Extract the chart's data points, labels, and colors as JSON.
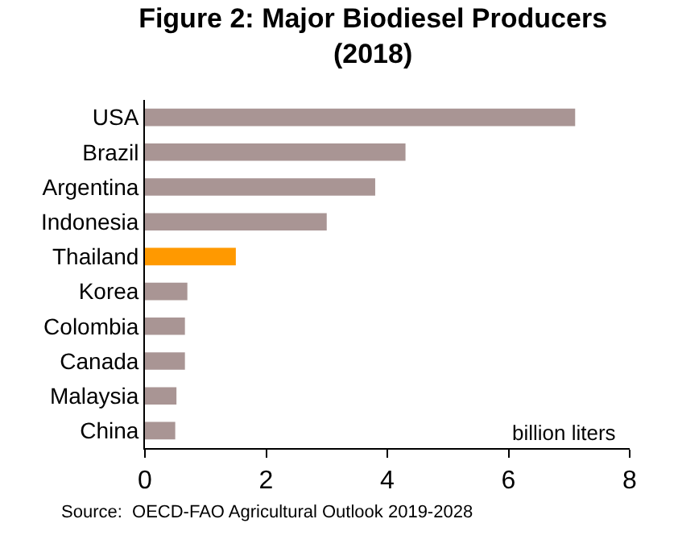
{
  "chart_data": {
    "type": "bar",
    "orientation": "horizontal",
    "title": "Figure 2: Major Biodiesel Producers\n(2018)",
    "categories": [
      "USA",
      "Brazil",
      "Argentina",
      "Indonesia",
      "Thailand",
      "Korea",
      "Colombia",
      "Canada",
      "Malaysia",
      "China"
    ],
    "values": [
      7.1,
      4.3,
      3.8,
      3.0,
      1.5,
      0.7,
      0.66,
      0.66,
      0.52,
      0.5
    ],
    "colors": [
      "#a99594",
      "#a99594",
      "#a99594",
      "#a99594",
      "#ff9900",
      "#a99594",
      "#a99594",
      "#a99594",
      "#a99594",
      "#a99594"
    ],
    "xlim": [
      0,
      8
    ],
    "xticks": [
      0,
      2,
      4,
      6,
      8
    ],
    "legend": false,
    "annotations": [
      "billion liters",
      "Source:  OECD-FAO Agricultural Outlook 2019-2028"
    ]
  }
}
